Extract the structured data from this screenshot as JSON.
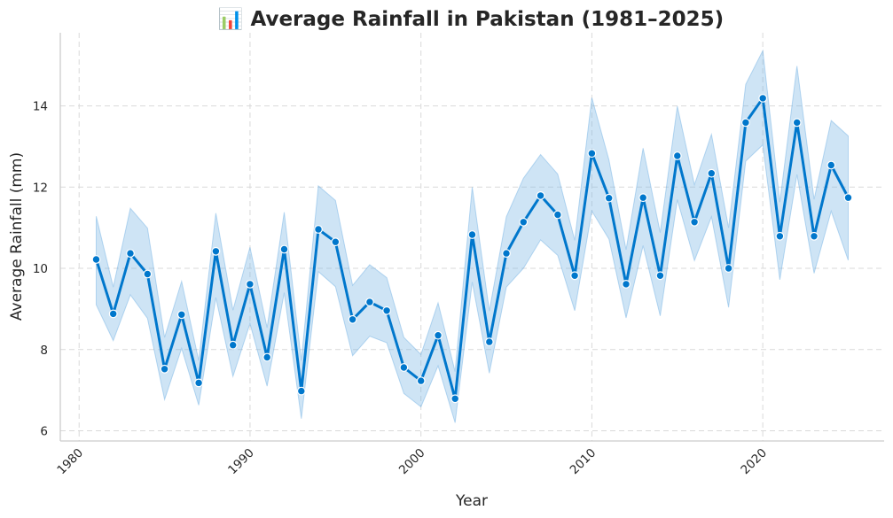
{
  "chart_data": {
    "type": "line",
    "title": "📊 Average Rainfall in Pakistan (1981–2025)",
    "xlabel": "Year",
    "ylabel": "Average Rainfall (mm)",
    "xlim": [
      1978.9,
      2027.1
    ],
    "ylim": [
      5.75,
      15.8
    ],
    "x_ticks": [
      1980,
      1990,
      2000,
      2010,
      2020
    ],
    "y_ticks": [
      6,
      8,
      10,
      12,
      14
    ],
    "grid": true,
    "colors": {
      "line": "#0077CC",
      "band": "#7FB8E6"
    },
    "x": [
      1981,
      1982,
      1983,
      1984,
      1985,
      1986,
      1987,
      1988,
      1989,
      1990,
      1991,
      1992,
      1993,
      1994,
      1995,
      1996,
      1997,
      1998,
      1999,
      2000,
      2001,
      2002,
      2003,
      2004,
      2005,
      2006,
      2007,
      2008,
      2009,
      2010,
      2011,
      2012,
      2013,
      2014,
      2015,
      2016,
      2017,
      2018,
      2019,
      2020,
      2021,
      2022,
      2023,
      2024,
      2025
    ],
    "series": [
      {
        "values": [
          10.22,
          8.88,
          10.37,
          9.86,
          7.52,
          8.86,
          7.18,
          10.42,
          8.11,
          9.61,
          7.81,
          10.47,
          6.98,
          10.96,
          10.65,
          8.74,
          9.17,
          8.96,
          7.56,
          7.23,
          8.35,
          6.79,
          10.83,
          8.19,
          10.37,
          11.14,
          11.79,
          11.32,
          9.82,
          12.83,
          11.73,
          9.61,
          11.74,
          9.82,
          12.77,
          11.14,
          12.34,
          10.0,
          13.59,
          14.19,
          10.79,
          13.59,
          10.79,
          12.54,
          11.74
        ],
        "lower": [
          9.1,
          8.22,
          9.35,
          8.77,
          6.77,
          8.03,
          6.63,
          9.28,
          7.34,
          8.64,
          7.1,
          9.4,
          6.3,
          9.92,
          9.55,
          7.85,
          8.33,
          8.17,
          6.92,
          6.59,
          7.6,
          6.2,
          9.66,
          7.42,
          9.54,
          10.0,
          10.7,
          10.32,
          8.96,
          11.41,
          10.72,
          8.78,
          10.56,
          8.83,
          11.69,
          10.19,
          11.27,
          9.04,
          12.64,
          13.04,
          9.72,
          12.31,
          9.88,
          11.41,
          10.2
        ],
        "upper": [
          11.28,
          9.54,
          11.48,
          10.99,
          8.3,
          9.68,
          7.73,
          11.36,
          8.97,
          10.52,
          8.54,
          11.38,
          7.73,
          12.03,
          11.67,
          9.58,
          10.09,
          9.77,
          8.3,
          7.88,
          9.15,
          7.46,
          12.0,
          8.95,
          11.27,
          12.22,
          12.8,
          12.32,
          10.69,
          14.2,
          12.67,
          10.46,
          12.96,
          10.88,
          13.99,
          12.06,
          13.3,
          11.0,
          14.53,
          15.36,
          11.63,
          14.98,
          11.7,
          13.64,
          13.26
        ]
      }
    ]
  }
}
